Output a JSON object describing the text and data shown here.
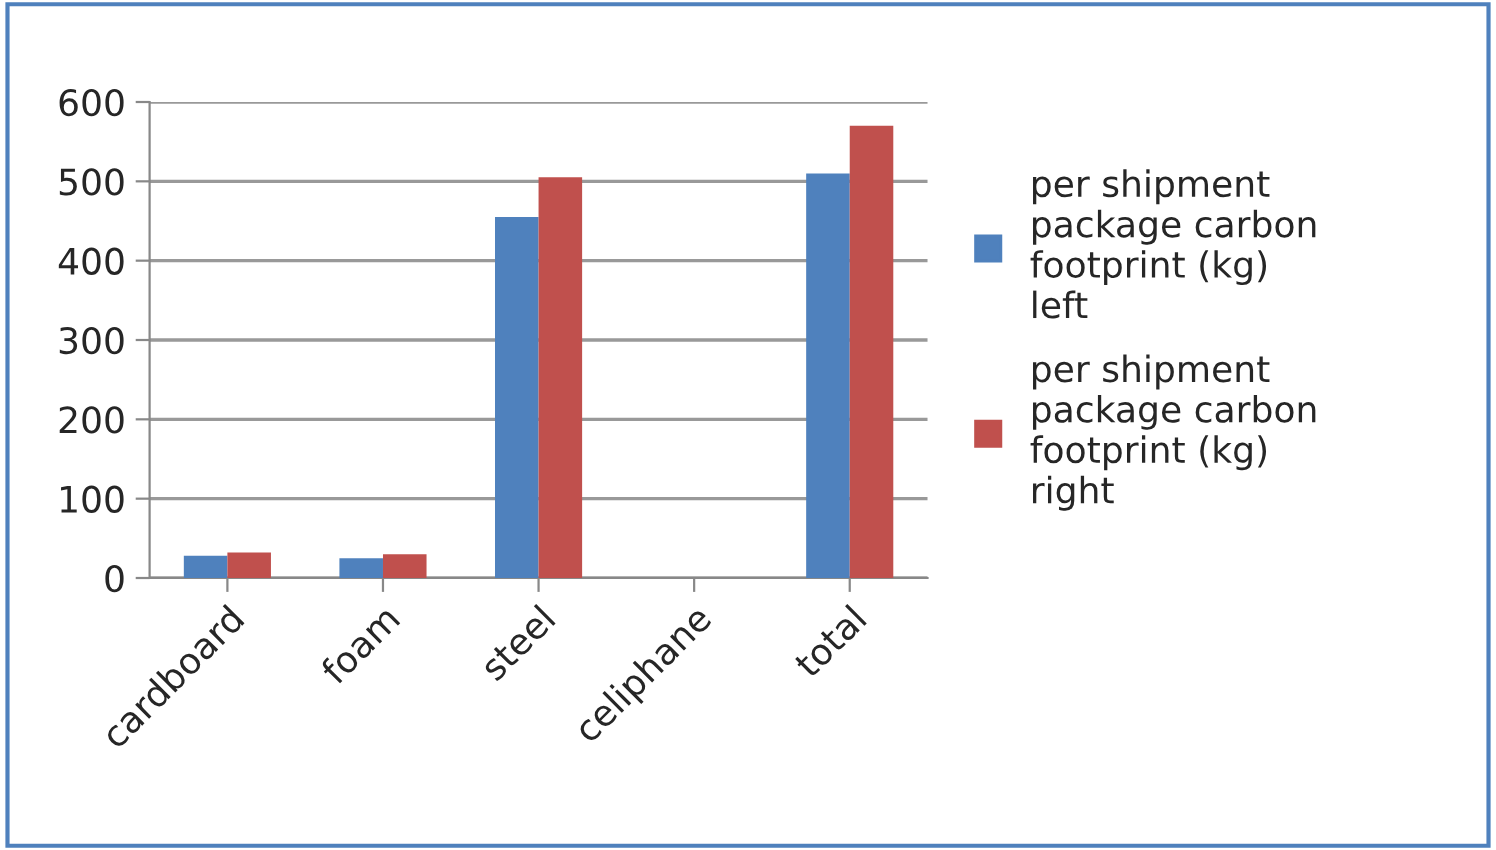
{
  "chart_data": {
    "type": "bar",
    "categories": [
      "cardboard",
      "foam",
      "steel",
      "celiphane",
      "total"
    ],
    "series": [
      {
        "name": "per shipment package carbon footprint (kg) left",
        "color": "#4f81bd",
        "values": [
          28,
          25,
          455,
          null,
          510
        ]
      },
      {
        "name": "per shipment package carbon footprint (kg) right",
        "color": "#c0504d",
        "values": [
          32,
          30,
          505,
          null,
          570
        ]
      }
    ],
    "ylim": [
      0,
      600
    ],
    "yticks": [
      0,
      100,
      200,
      300,
      400,
      500,
      600
    ],
    "grid": "y",
    "legend": "right"
  }
}
